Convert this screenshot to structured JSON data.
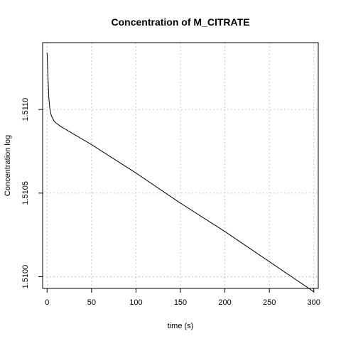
{
  "chart_data": {
    "type": "line",
    "title": "Concentration of M_CITRATE",
    "xlabel": "time (s)",
    "ylabel": "Concentration log",
    "xlim": [
      -5,
      305
    ],
    "ylim": [
      1.50993,
      1.5114
    ],
    "grid": true,
    "x_ticks": [
      0,
      50,
      100,
      150,
      200,
      250,
      300
    ],
    "y_ticks": [
      1.51,
      1.5105,
      1.511
    ],
    "x_tick_labels": [
      "0",
      "50",
      "100",
      "150",
      "200",
      "250",
      "300"
    ],
    "y_tick_labels": [
      "1.5100",
      "1.5105",
      "1.5110"
    ],
    "series": [
      {
        "x": [
          0,
          0.5,
          1,
          1.5,
          2,
          3,
          4,
          5,
          6,
          7,
          8,
          10,
          15,
          50,
          100,
          150,
          200,
          250,
          300
        ],
        "y": [
          1.51134,
          1.51127,
          1.5112,
          1.51113,
          1.51107,
          1.51101,
          1.51098,
          1.51096,
          1.51095,
          1.51094,
          1.51093,
          1.51092,
          1.5109,
          1.51079,
          1.51062,
          1.51044,
          1.51027,
          1.51009,
          1.50991
        ]
      }
    ]
  }
}
